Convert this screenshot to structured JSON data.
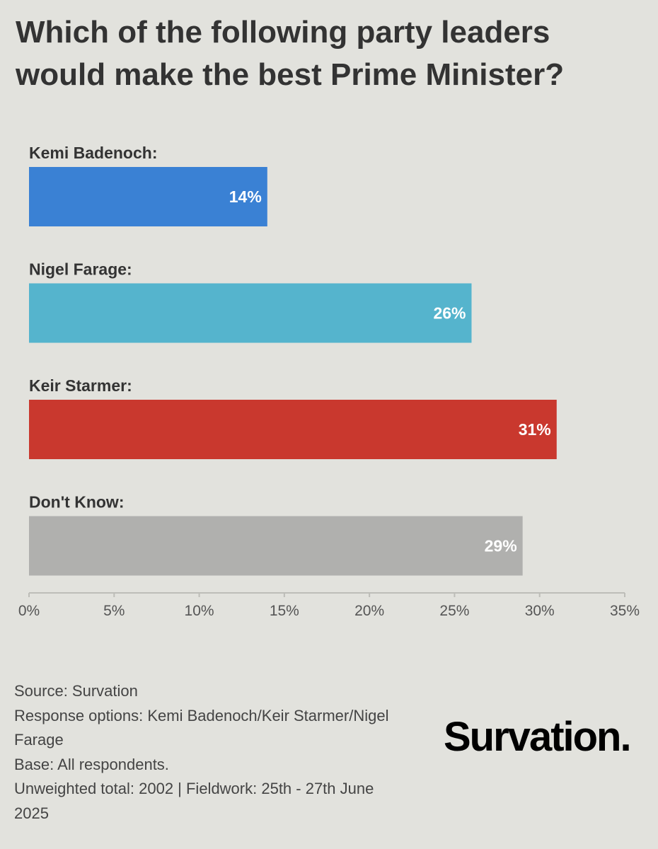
{
  "chart_data": {
    "type": "bar",
    "orientation": "horizontal",
    "title_lines": [
      "Which of the following party leaders",
      "would make the best Prime Minister?"
    ],
    "categories": [
      "Kemi Badenoch:",
      "Nigel Farage:",
      "Keir Starmer:",
      "Don't Know:"
    ],
    "values": [
      14,
      26,
      31,
      29
    ],
    "value_labels": [
      "14%",
      "26%",
      "31%",
      "29%"
    ],
    "colors": [
      "#3a81d4",
      "#55b4cd",
      "#c9382e",
      "#b0b0ae"
    ],
    "xlim": [
      0,
      35
    ],
    "xticks": [
      0,
      5,
      10,
      15,
      20,
      25,
      30,
      35
    ],
    "xtick_labels": [
      "0%",
      "5%",
      "10%",
      "15%",
      "20%",
      "25%",
      "30%",
      "35%"
    ],
    "xlabel": "",
    "ylabel": "",
    "grid": false
  },
  "footer": {
    "lines": [
      "Source: Survation",
      "Response options: Kemi Badenoch/Keir Starmer/Nigel",
      "Farage",
      "Base: All respondents.",
      "Unweighted total: 2002 | Fieldwork: 25th - 27th June",
      "2025"
    ]
  },
  "logo": {
    "text": "Survation."
  }
}
